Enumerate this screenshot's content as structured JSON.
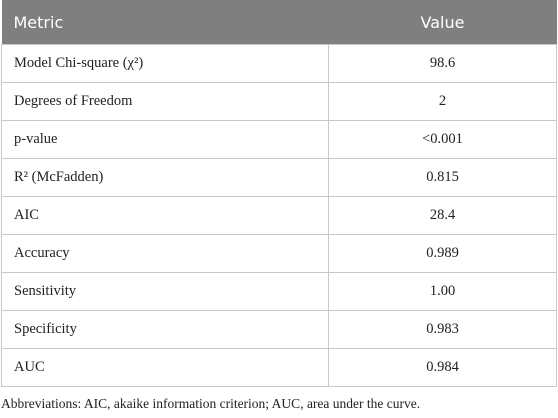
{
  "table": {
    "header": [
      "Metric",
      "Value"
    ],
    "rows": [
      [
        "Model Chi-square (χ²)",
        "98.6"
      ],
      [
        "Degrees of Freedom",
        "2"
      ],
      [
        "p-value",
        "<0.001"
      ],
      [
        "R² (McFadden)",
        "0.815"
      ],
      [
        "AIC",
        "28.4"
      ],
      [
        "Accuracy",
        "0.989"
      ],
      [
        "Sensitivity",
        "1.00"
      ],
      [
        "Specificity",
        "0.983"
      ],
      [
        "AUC",
        "0.984"
      ]
    ]
  },
  "footnote": "Abbreviations: AIC, akaike information criterion; AUC, area under the curve."
}
